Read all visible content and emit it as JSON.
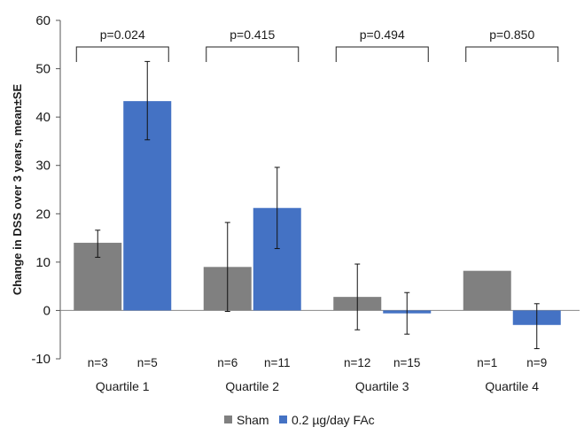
{
  "chart_data": {
    "type": "bar",
    "ylabel": "Change in DSS over 3 years, mean±SE",
    "ylim": [
      -10,
      60
    ],
    "yticks": [
      -10,
      0,
      10,
      20,
      30,
      40,
      50,
      60
    ],
    "categories": [
      "Quartile 1",
      "Quartile 2",
      "Quartile 3",
      "Quartile 4"
    ],
    "series": [
      {
        "name": "Sham",
        "color": "#808080",
        "values": [
          14,
          9,
          2.8,
          8.2
        ],
        "error_low": [
          11,
          -0.2,
          -4,
          null
        ],
        "error_high": [
          16.6,
          18.2,
          9.6,
          null
        ],
        "n": [
          "n=3",
          "n=6",
          "n=12",
          "n=1"
        ]
      },
      {
        "name": "0.2 µg/day FAc",
        "color": "#4472c4",
        "values": [
          43.3,
          21.2,
          -0.6,
          -3
        ],
        "error_low": [
          35.3,
          12.8,
          -4.9,
          -7.9
        ],
        "error_high": [
          51.5,
          29.6,
          3.7,
          1.4
        ],
        "n": [
          "n=5",
          "n=11",
          "n=15",
          "n=9"
        ]
      }
    ],
    "p_values": [
      "p=0.024",
      "p=0.415",
      "p=0.494",
      "p=0.850"
    ],
    "legend_position": "bottom",
    "grid": false
  }
}
